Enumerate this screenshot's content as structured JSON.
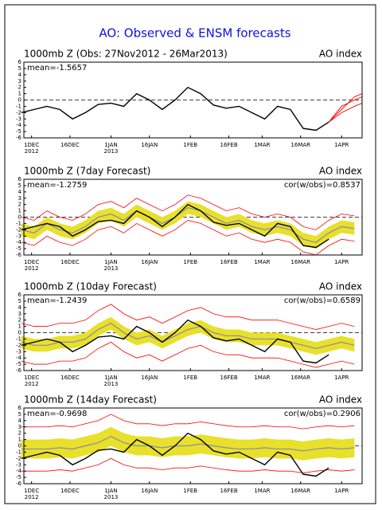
{
  "title": "AO: Observed & ENSM forecasts",
  "chart_data": [
    {
      "type": "line",
      "title": "1000mb Z (Obs: 27Nov2012 - 26Mar2013)",
      "right_label": "AO index",
      "stat": "mean=-1.5657",
      "xlim": [
        1,
        133
      ],
      "ylim": [
        -6,
        6
      ],
      "yticks": [
        6,
        5,
        4,
        3,
        2,
        1,
        0,
        -1,
        -2,
        -3,
        -4,
        -5,
        -6
      ],
      "xticks": [
        {
          "value": 4,
          "label": "1DEC"
        },
        {
          "value": 19,
          "label": "16DEC"
        },
        {
          "value": 35,
          "label": "1JAN"
        },
        {
          "value": 50,
          "label": "16JAN"
        },
        {
          "value": 66,
          "label": "1FEB"
        },
        {
          "value": 81,
          "label": "16FEB"
        },
        {
          "value": 94,
          "label": "1MAR"
        },
        {
          "value": 109,
          "label": "16MAR"
        },
        {
          "value": 125,
          "label": "1APR"
        }
      ],
      "year_labels": [
        {
          "value": 4,
          "label": "2012"
        },
        {
          "value": 35,
          "label": "2013"
        }
      ],
      "x": [
        0,
        5,
        10,
        15,
        20,
        25,
        30,
        35,
        40,
        45,
        50,
        55,
        60,
        65,
        70,
        75,
        80,
        85,
        90,
        95,
        100,
        105,
        110,
        115,
        120,
        125,
        130
      ],
      "obs": {
        "color": "#000000",
        "values": [
          -2,
          -1.5,
          -1,
          -1.5,
          -3,
          -2,
          -0.7,
          -0.5,
          -1,
          1,
          0,
          -1.5,
          0,
          2,
          1,
          -0.8,
          -1.3,
          -1,
          -2,
          -3,
          -1,
          -1.5,
          -4.5,
          -4.8,
          -3.5,
          null,
          null
        ]
      },
      "forecasts": [
        {
          "color": "#ff0000",
          "x": [
            120,
            125,
            130,
            133
          ],
          "values": [
            -3.5,
            -1,
            0,
            0.5
          ]
        },
        {
          "color": "#ff0000",
          "x": [
            120,
            125,
            130,
            133
          ],
          "values": [
            -3.5,
            -2,
            -1,
            -0.5
          ]
        },
        {
          "color": "#ff0000",
          "x": [
            120,
            125,
            130,
            133
          ],
          "values": [
            -3.5,
            -1.5,
            0.5,
            1
          ]
        }
      ]
    },
    {
      "type": "line",
      "title": "1000mb Z (7day Forecast)",
      "right_label": "AO index",
      "stat": "mean=-1.2759",
      "stat2": "cor(w/obs)=0.8537",
      "xlim": [
        1,
        133
      ],
      "ylim": [
        -6,
        6
      ],
      "yticks": [
        6,
        5,
        4,
        3,
        2,
        1,
        0,
        -1,
        -2,
        -3,
        -4,
        -5,
        -6
      ],
      "xticks": [
        {
          "value": 4,
          "label": "1DEC"
        },
        {
          "value": 19,
          "label": "16DEC"
        },
        {
          "value": 35,
          "label": "1JAN"
        },
        {
          "value": 50,
          "label": "16JAN"
        },
        {
          "value": 66,
          "label": "1FEB"
        },
        {
          "value": 81,
          "label": "16FEB"
        },
        {
          "value": 94,
          "label": "1MAR"
        },
        {
          "value": 109,
          "label": "16MAR"
        },
        {
          "value": 125,
          "label": "1APR"
        }
      ],
      "year_labels": [
        {
          "value": 4,
          "label": "2012"
        },
        {
          "value": 35,
          "label": "2013"
        }
      ],
      "x": [
        0,
        5,
        10,
        15,
        20,
        25,
        30,
        35,
        40,
        45,
        50,
        55,
        60,
        65,
        70,
        75,
        80,
        85,
        90,
        95,
        100,
        105,
        110,
        115,
        120,
        125,
        130
      ],
      "envelope": {
        "color": "#ff0000",
        "upper": [
          0,
          -0.5,
          1,
          0,
          -0.5,
          0.5,
          2,
          2.5,
          1.5,
          3,
          2,
          1,
          2,
          3.5,
          3,
          2,
          1,
          1.5,
          0.5,
          0,
          0.5,
          0,
          -1.5,
          -2,
          -0.5,
          0.5,
          0.2
        ],
        "lower": [
          -4,
          -4.5,
          -3,
          -4,
          -4.5,
          -3.5,
          -2,
          -1.5,
          -2.5,
          -1,
          -2,
          -3,
          -2,
          -0.5,
          -1,
          -2,
          -3,
          -2.5,
          -3.5,
          -4,
          -3.5,
          -4,
          -5.5,
          -6,
          -4.5,
          -3.5,
          -3.8
        ]
      },
      "band": {
        "color": "#e8e02a",
        "upper": [
          -1,
          -1.5,
          0,
          -1,
          -1.5,
          -0.5,
          1,
          1.5,
          0.5,
          2,
          1,
          0,
          1,
          2.5,
          2,
          1,
          0,
          0.5,
          -0.5,
          -1,
          -0.5,
          -1,
          -2.5,
          -3,
          -1.5,
          -0.5,
          -0.8
        ],
        "lower": [
          -3,
          -3.5,
          -2,
          -3,
          -3.5,
          -2.5,
          -1,
          -0.5,
          -1.5,
          0,
          -1,
          -2,
          -1,
          0.5,
          0,
          -1,
          -2,
          -1.5,
          -2.5,
          -3,
          -2.5,
          -3,
          -4.5,
          -5,
          -3.5,
          -2.5,
          -2.8
        ]
      },
      "mean": {
        "color": "#8a8aa8",
        "values": [
          -2,
          -2.5,
          -1,
          -2,
          -2.5,
          -1.5,
          0,
          0.5,
          -0.5,
          1,
          0,
          -1,
          0,
          1.5,
          1,
          0,
          -1,
          -0.5,
          -1.5,
          -2,
          -1.5,
          -2,
          -3.5,
          -4,
          -2.5,
          -1.5,
          -1.8
        ]
      },
      "obs": {
        "color": "#000000",
        "values": [
          -2,
          -1.5,
          -1,
          -1.5,
          -3,
          -2,
          -0.7,
          -0.5,
          -1,
          1,
          0,
          -1.5,
          0,
          2,
          1,
          -0.8,
          -1.3,
          -1,
          -2,
          -3,
          -1,
          -1.5,
          -4.5,
          -4.8,
          -3.5,
          null,
          null
        ]
      }
    },
    {
      "type": "line",
      "title": "1000mb Z (10day Forecast)",
      "right_label": "AO index",
      "stat": "mean=-1.2439",
      "stat2": "cor(w/obs)=0.6589",
      "xlim": [
        1,
        133
      ],
      "ylim": [
        -6,
        6
      ],
      "yticks": [
        6,
        5,
        4,
        3,
        2,
        1,
        0,
        -1,
        -2,
        -3,
        -4,
        -5,
        -6
      ],
      "xticks": [
        {
          "value": 4,
          "label": "1DEC"
        },
        {
          "value": 19,
          "label": "16DEC"
        },
        {
          "value": 35,
          "label": "1JAN"
        },
        {
          "value": 50,
          "label": "16JAN"
        },
        {
          "value": 66,
          "label": "1FEB"
        },
        {
          "value": 81,
          "label": "16FEB"
        },
        {
          "value": 94,
          "label": "1MAR"
        },
        {
          "value": 109,
          "label": "16MAR"
        },
        {
          "value": 125,
          "label": "1APR"
        }
      ],
      "year_labels": [
        {
          "value": 4,
          "label": "2012"
        },
        {
          "value": 35,
          "label": "2013"
        }
      ],
      "x": [
        0,
        5,
        10,
        15,
        20,
        25,
        30,
        35,
        40,
        45,
        50,
        55,
        60,
        65,
        70,
        75,
        80,
        85,
        90,
        95,
        100,
        105,
        110,
        115,
        120,
        125,
        130
      ],
      "envelope": {
        "color": "#ff0000",
        "upper": [
          1.5,
          1,
          1,
          1.5,
          1.5,
          2,
          3.5,
          4.5,
          3,
          2,
          2.5,
          1.5,
          2.5,
          3.5,
          4,
          3,
          2.5,
          2.5,
          2,
          2,
          2,
          1.5,
          1,
          0.5,
          1,
          1.5,
          1
        ],
        "lower": [
          -4.5,
          -5,
          -5,
          -4.5,
          -4.5,
          -4,
          -2.5,
          -1.5,
          -3,
          -4,
          -3.5,
          -4.5,
          -3.5,
          -2.5,
          -2,
          -3,
          -3.5,
          -3.5,
          -4,
          -4,
          -4,
          -4.5,
          -5,
          -5.5,
          -5,
          -4.5,
          -5
        ]
      },
      "band": {
        "color": "#e8e02a",
        "upper": [
          -0.5,
          -1,
          -1,
          -0.5,
          -0.5,
          0,
          1.5,
          2.5,
          1,
          0,
          0.5,
          -0.5,
          0.5,
          1.5,
          2,
          1,
          0.5,
          0.5,
          0,
          0,
          0,
          -0.5,
          -1,
          -1.5,
          -1,
          -0.5,
          -1
        ],
        "lower": [
          -2.5,
          -3,
          -3,
          -2.5,
          -2.5,
          -2,
          -0.5,
          0.5,
          -1,
          -2,
          -1.5,
          -2.5,
          -1.5,
          -0.5,
          0,
          -1,
          -1.5,
          -1.5,
          -2,
          -2,
          -2,
          -2.5,
          -3,
          -3.5,
          -3,
          -2.5,
          -3
        ]
      },
      "mean": {
        "color": "#8a8aa8",
        "values": [
          -1.5,
          -2,
          -2,
          -1.5,
          -1.5,
          -1,
          0.5,
          1.5,
          0,
          -1,
          -0.5,
          -1.5,
          -0.5,
          0.5,
          1,
          0,
          -0.5,
          -0.5,
          -1,
          -1,
          -1,
          -1.5,
          -2,
          -2.5,
          -2,
          -1.5,
          -2
        ]
      },
      "obs": {
        "color": "#000000",
        "values": [
          -2,
          -1.5,
          -1,
          -1.5,
          -3,
          -2,
          -0.7,
          -0.5,
          -1,
          1,
          0,
          -1.5,
          0,
          2,
          1,
          -0.8,
          -1.3,
          -1,
          -2,
          -3,
          -1,
          -1.5,
          -4.5,
          -4.8,
          -3.5,
          null,
          null
        ]
      }
    },
    {
      "type": "line",
      "title": "1000mb Z (14day Forecast)",
      "right_label": "AO index",
      "stat": "mean=-0.9698",
      "stat2": "cor(w/obs)=0.2906",
      "xlim": [
        1,
        133
      ],
      "ylim": [
        -6,
        6
      ],
      "yticks": [
        6,
        5,
        4,
        3,
        2,
        1,
        0,
        -1,
        -2,
        -3,
        -4,
        -5,
        -6
      ],
      "xticks": [
        {
          "value": 4,
          "label": "1DEC"
        },
        {
          "value": 19,
          "label": "16DEC"
        },
        {
          "value": 35,
          "label": "1JAN"
        },
        {
          "value": 50,
          "label": "16JAN"
        },
        {
          "value": 66,
          "label": "1FEB"
        },
        {
          "value": 81,
          "label": "16FEB"
        },
        {
          "value": 94,
          "label": "1MAR"
        },
        {
          "value": 109,
          "label": "16MAR"
        },
        {
          "value": 125,
          "label": "1APR"
        }
      ],
      "year_labels": [
        {
          "value": 4,
          "label": "2012"
        },
        {
          "value": 35,
          "label": "2013"
        }
      ],
      "x": [
        0,
        5,
        10,
        15,
        20,
        25,
        30,
        35,
        40,
        45,
        50,
        55,
        60,
        65,
        70,
        75,
        80,
        85,
        90,
        95,
        100,
        105,
        110,
        115,
        120,
        125,
        130
      ],
      "envelope": {
        "color": "#ff0000",
        "upper": [
          3,
          3,
          3,
          3.2,
          3,
          3.5,
          4,
          5,
          4,
          3.5,
          3.5,
          3.2,
          3.5,
          3.5,
          3.8,
          3.5,
          3.2,
          3,
          3,
          3.2,
          3,
          3,
          2.7,
          3,
          3.2,
          3,
          3.2
        ],
        "lower": [
          -4,
          -4,
          -4,
          -3.8,
          -4,
          -3.5,
          -3,
          -2,
          -3,
          -3.5,
          -3.5,
          -3.8,
          -3.5,
          -3.5,
          -3.2,
          -3.5,
          -3.8,
          -4,
          -4,
          -3.8,
          -4,
          -4,
          -4.3,
          -4,
          -3.8,
          -4,
          -3.8
        ]
      },
      "band": {
        "color": "#e8e02a",
        "upper": [
          1,
          1,
          1,
          1.2,
          1,
          1.5,
          2,
          3,
          2,
          1.5,
          1.5,
          1.2,
          1.5,
          1.5,
          1.8,
          1.5,
          1.2,
          1,
          1,
          1.2,
          1,
          1,
          0.7,
          1,
          1.2,
          1,
          1.2
        ],
        "lower": [
          -2,
          -2,
          -2,
          -1.8,
          -2,
          -1.5,
          -1,
          0,
          -1,
          -1.5,
          -1.5,
          -1.8,
          -1.5,
          -1.5,
          -1.2,
          -1.5,
          -1.8,
          -2,
          -2,
          -1.8,
          -2,
          -2,
          -2.3,
          -2,
          -1.8,
          -2,
          -1.8
        ]
      },
      "mean": {
        "color": "#8a8aa8",
        "values": [
          -0.5,
          -0.5,
          -0.5,
          -0.3,
          -0.5,
          0,
          0.5,
          1.5,
          0.5,
          0,
          0,
          -0.3,
          0,
          0,
          0.3,
          0,
          -0.3,
          -0.5,
          -0.5,
          -0.3,
          -0.5,
          -0.5,
          -0.8,
          -0.5,
          -0.3,
          -0.5,
          -0.3
        ]
      },
      "obs": {
        "color": "#000000",
        "values": [
          -2,
          -1.5,
          -1,
          -1.5,
          -3,
          -2,
          -0.7,
          -0.5,
          -1,
          1,
          0,
          -1.5,
          0,
          2,
          1,
          -0.8,
          -1.3,
          -1,
          -2,
          -3,
          -1,
          -1.5,
          -4.5,
          -4.8,
          -3.5,
          null,
          null
        ]
      }
    }
  ]
}
